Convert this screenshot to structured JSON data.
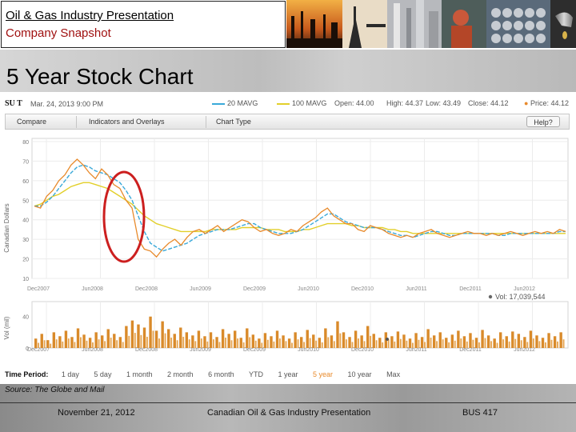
{
  "header": {
    "title": "Oil & Gas Industry Presentation",
    "subtitle": "Company Snapshot"
  },
  "slide_title": "5 Year Stock Chart",
  "quote": {
    "ticker": "SU T",
    "timestamp": "Mar. 24, 2013 9:00 PM",
    "ma20_label": "20 MAVG",
    "ma100_label": "100 MAVG",
    "open": "Open: 44.00",
    "high": "High: 44.37",
    "low": "Low: 43.49",
    "close": "Close: 44.12",
    "price": "Price: 44.12"
  },
  "toolbar": {
    "compare": "Compare",
    "indicators": "Indicators and Overlays",
    "chart_type": "Chart Type",
    "help": "Help?"
  },
  "volume_label": "Vol: 17,039,544",
  "time_period": {
    "label": "Time Period:",
    "options": [
      "1 day",
      "5 day",
      "1 month",
      "2 month",
      "6 month",
      "YTD",
      "1 year",
      "5 year",
      "10 year",
      "Max"
    ],
    "active": "5 year"
  },
  "source": "Source: The Globe and Mail",
  "footer": {
    "date": "November 21, 2012",
    "center": "Canadian Oil & Gas Industry Presentation",
    "course": "BUS 417"
  },
  "colors": {
    "price": "#e88a2b",
    "ma20": "#3aa9d9",
    "ma100": "#e2cf2a",
    "highlight": "#cc1f1f"
  },
  "chart_data": {
    "type": "line",
    "ylabel": "Canadian Dollars",
    "ylim": [
      10,
      80
    ],
    "yticks": [
      10,
      20,
      30,
      40,
      50,
      60,
      70,
      80
    ],
    "xticks": [
      "Dec2007",
      "Jun2008",
      "Dec2008",
      "Jun2009",
      "Dec2009",
      "Jun2010",
      "Dec2010",
      "Jun2011",
      "Dec2011",
      "Jun2012"
    ],
    "grid": true,
    "series": [
      {
        "name": "Price",
        "values": [
          47,
          46,
          52,
          55,
          60,
          63,
          68,
          71,
          68,
          64,
          61,
          66,
          63,
          58,
          56,
          50,
          46,
          30,
          25,
          24,
          21,
          25,
          28,
          30,
          27,
          31,
          34,
          35,
          33,
          35,
          37,
          34,
          36,
          38,
          40,
          39,
          36,
          34,
          35,
          33,
          32,
          33,
          35,
          34,
          37,
          39,
          41,
          44,
          46,
          42,
          40,
          38,
          38,
          35,
          34,
          37,
          36,
          35,
          33,
          32,
          31,
          32,
          31,
          33,
          34,
          35,
          33,
          32,
          31,
          32,
          33,
          34,
          33,
          33,
          32,
          33,
          32,
          33,
          34,
          33,
          32,
          33,
          34,
          33,
          34,
          33,
          35,
          34
        ]
      },
      {
        "name": "20 MAVG",
        "values": [
          47,
          47,
          49,
          52,
          56,
          60,
          64,
          67,
          68,
          67,
          65,
          64,
          63,
          61,
          59,
          55,
          50,
          42,
          34,
          28,
          26,
          24,
          25,
          26,
          27,
          28,
          30,
          32,
          33,
          34,
          35,
          35,
          35,
          36,
          37,
          38,
          38,
          36,
          35,
          34,
          33,
          33,
          33,
          34,
          35,
          37,
          39,
          41,
          43,
          43,
          41,
          39,
          38,
          37,
          36,
          36,
          36,
          35,
          34,
          33,
          32,
          32,
          31,
          32,
          33,
          34,
          34,
          33,
          32,
          32,
          33,
          33,
          33,
          33,
          33,
          33,
          32,
          32,
          33,
          33,
          33,
          33,
          33,
          33,
          33,
          33,
          34,
          34
        ]
      },
      {
        "name": "100 MAVG",
        "values": [
          47,
          48,
          50,
          52,
          53,
          55,
          57,
          58,
          59,
          59,
          58,
          57,
          56,
          54,
          52,
          50,
          48,
          45,
          42,
          40,
          38,
          37,
          36,
          35,
          34,
          34,
          34,
          34,
          34,
          35,
          35,
          35,
          35,
          35,
          36,
          36,
          36,
          36,
          35,
          35,
          35,
          34,
          34,
          34,
          35,
          35,
          36,
          37,
          38,
          38,
          38,
          38,
          37,
          37,
          36,
          36,
          36,
          36,
          35,
          35,
          34,
          34,
          33,
          33,
          33,
          33,
          33,
          33,
          33,
          33,
          33,
          33,
          33,
          33,
          33,
          33,
          33,
          33,
          33,
          33,
          33,
          33,
          33,
          33,
          33,
          33,
          33,
          33
        ]
      }
    ],
    "volume": {
      "ylabel": "Vol (mil)",
      "yticks": [
        0,
        40
      ],
      "values": [
        12,
        18,
        10,
        20,
        15,
        22,
        14,
        25,
        17,
        13,
        20,
        16,
        24,
        18,
        14,
        28,
        35,
        30,
        26,
        40,
        22,
        34,
        24,
        18,
        26,
        20,
        16,
        22,
        15,
        20,
        14,
        24,
        18,
        22,
        13,
        25,
        17,
        12,
        19,
        15,
        22,
        16,
        12,
        20,
        14,
        23,
        17,
        13,
        25,
        16,
        34,
        20,
        14,
        22,
        16,
        28,
        18,
        13,
        20,
        15,
        21,
        17,
        12,
        19,
        14,
        24,
        16,
        20,
        13,
        17,
        22,
        15,
        19,
        13,
        23,
        16,
        12,
        20,
        15,
        21,
        18,
        14,
        22,
        16,
        13,
        19,
        15,
        20
      ]
    }
  }
}
